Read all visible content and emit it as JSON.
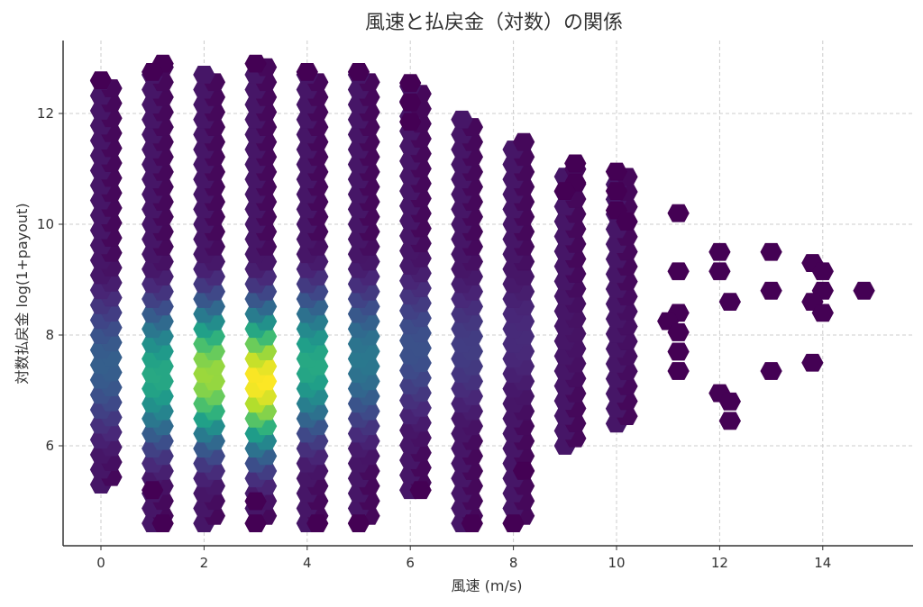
{
  "chart_data": {
    "type": "heatmap",
    "subtype": "hexbin",
    "title": "風速と払戻金（対数）の関係",
    "xlabel": "風速 (m/s)",
    "ylabel": "対数払戻金 log(1+payout)",
    "xlim": [
      -0.7,
      15.7
    ],
    "ylim": [
      4.3,
      13.4
    ],
    "xticks": [
      0,
      2,
      4,
      6,
      8,
      10,
      12,
      14
    ],
    "yticks": [
      6,
      8,
      10,
      12
    ],
    "grid": true,
    "colormap": "viridis",
    "legend": "none",
    "columns": [
      {
        "x": 0,
        "ymin": 5.3,
        "ymax": 12.6,
        "peak_y": 7.5,
        "peak_level": 0.3
      },
      {
        "x": 1,
        "ymin": 4.6,
        "ymax": 12.9,
        "peak_y": 7.3,
        "peak_level": 0.6
      },
      {
        "x": 2,
        "ymin": 4.6,
        "ymax": 12.8,
        "peak_y": 7.3,
        "peak_level": 0.85
      },
      {
        "x": 3,
        "ymin": 4.6,
        "ymax": 12.9,
        "peak_y": 7.2,
        "peak_level": 1.0
      },
      {
        "x": 4,
        "ymin": 4.6,
        "ymax": 12.8,
        "peak_y": 7.5,
        "peak_level": 0.6
      },
      {
        "x": 5,
        "ymin": 4.6,
        "ymax": 12.8,
        "peak_y": 7.6,
        "peak_level": 0.4
      },
      {
        "x": 6,
        "ymin": 5.2,
        "ymax": 12.6,
        "peak_y": 7.8,
        "peak_level": 0.25
      },
      {
        "x": 7,
        "ymin": 4.6,
        "ymax": 11.9,
        "peak_y": 7.8,
        "peak_level": 0.18
      },
      {
        "x": 8,
        "ymin": 4.6,
        "ymax": 11.5,
        "peak_y": 8.0,
        "peak_level": 0.12
      },
      {
        "x": 9,
        "ymin": 6.0,
        "ymax": 11.1,
        "peak_y": 8.0,
        "peak_level": 0.05
      },
      {
        "x": 10,
        "ymin": 6.4,
        "ymax": 10.9,
        "peak_y": 8.0,
        "peak_level": 0.04
      },
      {
        "x": 11,
        "ymin": 7.3,
        "ymax": 10.2,
        "peak_y": 8.0,
        "peak_level": 0.0
      },
      {
        "x": 12,
        "ymin": 6.4,
        "ymax": 9.5,
        "peak_y": 8.0,
        "peak_level": 0.0
      },
      {
        "x": 13,
        "ymin": 7.3,
        "ymax": 9.5,
        "peak_y": 8.0,
        "peak_level": 0.0
      },
      {
        "x": 14,
        "ymin": 7.5,
        "ymax": 9.3,
        "peak_y": 8.8,
        "peak_level": 0.0
      },
      {
        "x": 15,
        "ymin": 8.8,
        "ymax": 8.8,
        "peak_y": 8.8,
        "peak_level": 0.0
      }
    ],
    "sparse_cells": [
      {
        "x": 0.0,
        "y": 12.6
      },
      {
        "x": 1.2,
        "y": 12.9
      },
      {
        "x": 1.0,
        "y": 12.75
      },
      {
        "x": 3.0,
        "y": 12.9
      },
      {
        "x": 4.0,
        "y": 12.75
      },
      {
        "x": 5.0,
        "y": 12.75
      },
      {
        "x": 6.0,
        "y": 12.55
      },
      {
        "x": 6.0,
        "y": 12.2
      },
      {
        "x": 6.0,
        "y": 11.85
      },
      {
        "x": 1.0,
        "y": 5.2
      },
      {
        "x": 1.2,
        "y": 4.6
      },
      {
        "x": 3.0,
        "y": 5.0
      },
      {
        "x": 3.0,
        "y": 4.6
      },
      {
        "x": 4.2,
        "y": 4.6
      },
      {
        "x": 5.0,
        "y": 4.6
      },
      {
        "x": 6.2,
        "y": 5.2
      },
      {
        "x": 7.2,
        "y": 4.6
      },
      {
        "x": 8.0,
        "y": 4.6
      },
      {
        "x": 8.2,
        "y": 5.55
      },
      {
        "x": 9.2,
        "y": 11.1
      },
      {
        "x": 9.2,
        "y": 10.75
      },
      {
        "x": 9.0,
        "y": 10.6
      },
      {
        "x": 10.0,
        "y": 10.95
      },
      {
        "x": 10.0,
        "y": 10.6
      },
      {
        "x": 10.0,
        "y": 10.25
      },
      {
        "x": 10.2,
        "y": 10.05
      },
      {
        "x": 11.2,
        "y": 10.2
      },
      {
        "x": 11.2,
        "y": 9.15
      },
      {
        "x": 11.2,
        "y": 8.4
      },
      {
        "x": 11.0,
        "y": 8.25
      },
      {
        "x": 11.2,
        "y": 8.05
      },
      {
        "x": 11.2,
        "y": 7.7
      },
      {
        "x": 11.2,
        "y": 7.35
      },
      {
        "x": 12.0,
        "y": 9.5
      },
      {
        "x": 12.0,
        "y": 9.15
      },
      {
        "x": 12.2,
        "y": 8.6
      },
      {
        "x": 12.0,
        "y": 6.95
      },
      {
        "x": 12.2,
        "y": 6.8
      },
      {
        "x": 12.2,
        "y": 6.45
      },
      {
        "x": 13.0,
        "y": 9.5
      },
      {
        "x": 13.0,
        "y": 8.8
      },
      {
        "x": 13.0,
        "y": 7.35
      },
      {
        "x": 13.8,
        "y": 9.3
      },
      {
        "x": 14.0,
        "y": 9.15
      },
      {
        "x": 14.0,
        "y": 8.8
      },
      {
        "x": 13.8,
        "y": 8.6
      },
      {
        "x": 14.0,
        "y": 8.4
      },
      {
        "x": 13.8,
        "y": 7.5
      },
      {
        "x": 14.8,
        "y": 8.8
      }
    ]
  }
}
